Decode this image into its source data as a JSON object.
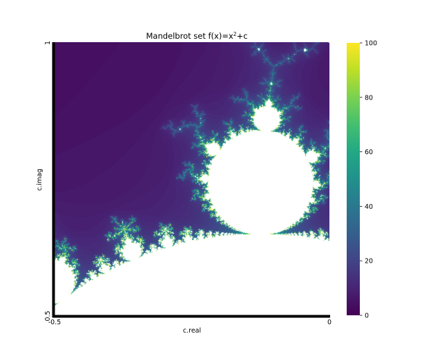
{
  "chart_data": {
    "type": "heatmap",
    "title_main": "Mandelbrot set f(x)=x",
    "title_sup": "2",
    "title_tail": "+c",
    "xlabel": "c.real",
    "ylabel": "c.imag",
    "xlim": [
      -0.5,
      0
    ],
    "ylim": [
      0.5,
      1
    ],
    "x_ticks": [
      "-0.5",
      "0"
    ],
    "y_ticks": [
      "0.5",
      "1"
    ],
    "max_iter": 100,
    "colorbar": {
      "ticks": [
        "0",
        "20",
        "40",
        "60",
        "80",
        "100"
      ],
      "tick_values": [
        0,
        20,
        40,
        60,
        80,
        100
      ],
      "colormap": "viridis"
    },
    "interior_color": "#ffffff",
    "axis_color": "#000000"
  }
}
